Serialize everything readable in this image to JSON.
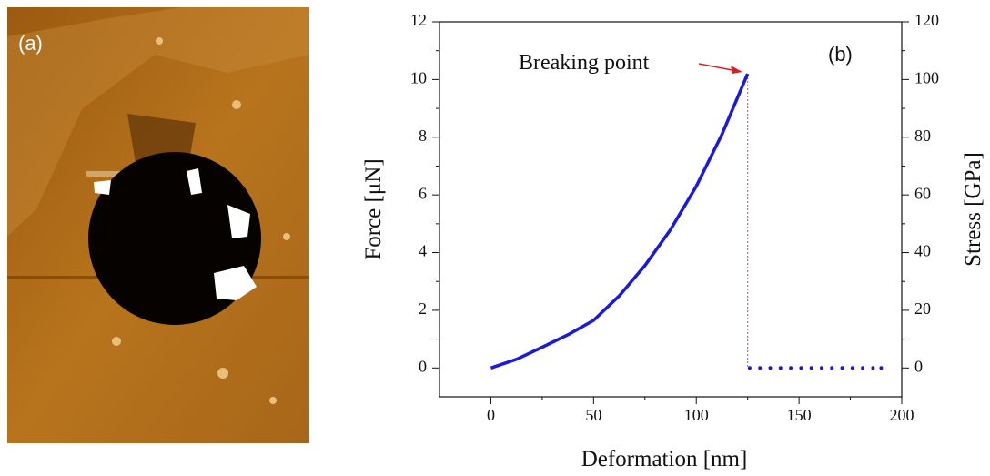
{
  "panel_a": {
    "label": "(a)"
  },
  "chart_data": {
    "type": "line",
    "panel_label": "(b)",
    "x_label": "Deformation [nm]",
    "y_label": "Force [μN]",
    "y2_label": "Stress [GPa]",
    "annotation": "Breaking point",
    "series": [
      {
        "color": "#1a1adb",
        "style": "line",
        "x": [
          0,
          12.5,
          25,
          37.5,
          50,
          62.5,
          75,
          87.5,
          100,
          112.5,
          125
        ],
        "values": [
          0,
          0.3,
          0.72,
          1.15,
          1.65,
          2.5,
          3.55,
          4.8,
          6.3,
          8.1,
          10.2
        ]
      },
      {
        "color": "#1a1adb",
        "style": "dots",
        "x": [
          126,
          131,
          136,
          141,
          146,
          151,
          156,
          161,
          166,
          171,
          176,
          181,
          186,
          190
        ],
        "values": [
          0,
          0,
          0,
          0,
          0,
          0,
          0,
          0,
          0,
          0,
          0,
          0,
          0,
          0
        ]
      }
    ],
    "break_color": "#d9485f",
    "xlim": [
      -25,
      200
    ],
    "xticks": [
      0,
      50,
      100,
      150,
      200
    ],
    "ylim": [
      -1,
      12
    ],
    "yticks": [
      0,
      2,
      4,
      6,
      8,
      10,
      12
    ],
    "y2lim": [
      -10,
      120
    ],
    "y2ticks": [
      0,
      20,
      40,
      60,
      80,
      100,
      120
    ]
  }
}
